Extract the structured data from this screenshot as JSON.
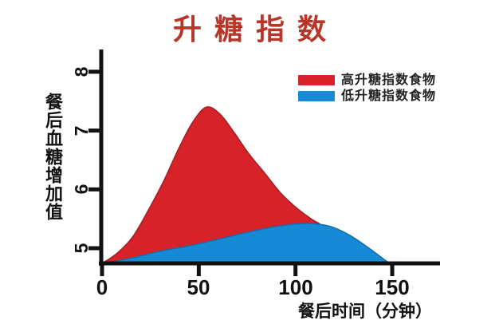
{
  "title": {
    "text": "升糖指数",
    "color": "#b83527"
  },
  "legend": {
    "items": [
      {
        "label": "高升糖指数食物",
        "color": "#d8222a"
      },
      {
        "label": "低升糖指数食物",
        "color": "#168ad4"
      }
    ]
  },
  "chart_data": {
    "type": "area",
    "title": "升糖指数",
    "xlabel": "餐后时间（分钟）",
    "ylabel": "餐后血糖增加值",
    "xticks": [
      0,
      50,
      100,
      150
    ],
    "yticks": [
      5,
      6,
      7,
      8
    ],
    "xlim": [
      0,
      172
    ],
    "ylim": [
      4.74,
      8.3
    ],
    "baseline_value": 4.74,
    "grid": false,
    "legend_position": "top-right",
    "axis_color": "#111111",
    "series": [
      {
        "name": "高升糖指数食物",
        "color": "#d8222a",
        "edge_color": "#a02027",
        "points": [
          [
            0,
            4.74
          ],
          [
            8,
            4.92
          ],
          [
            16,
            5.2
          ],
          [
            24,
            5.65
          ],
          [
            32,
            6.15
          ],
          [
            40,
            6.72
          ],
          [
            47,
            7.15
          ],
          [
            54,
            7.4
          ],
          [
            61,
            7.28
          ],
          [
            68,
            6.98
          ],
          [
            76,
            6.6
          ],
          [
            84,
            6.28
          ],
          [
            92,
            5.95
          ],
          [
            100,
            5.7
          ],
          [
            108,
            5.5
          ],
          [
            115,
            5.35
          ],
          [
            121,
            5.05
          ],
          [
            126,
            4.74
          ]
        ]
      },
      {
        "name": "低升糖指数食物",
        "color": "#168ad4",
        "edge_color": "#0f6fae",
        "points": [
          [
            0,
            4.74
          ],
          [
            15,
            4.83
          ],
          [
            30,
            4.95
          ],
          [
            45,
            5.04
          ],
          [
            60,
            5.15
          ],
          [
            75,
            5.27
          ],
          [
            90,
            5.37
          ],
          [
            100,
            5.41
          ],
          [
            108,
            5.42
          ],
          [
            118,
            5.37
          ],
          [
            128,
            5.22
          ],
          [
            138,
            5.0
          ],
          [
            147,
            4.78
          ],
          [
            150,
            4.74
          ]
        ]
      }
    ]
  }
}
